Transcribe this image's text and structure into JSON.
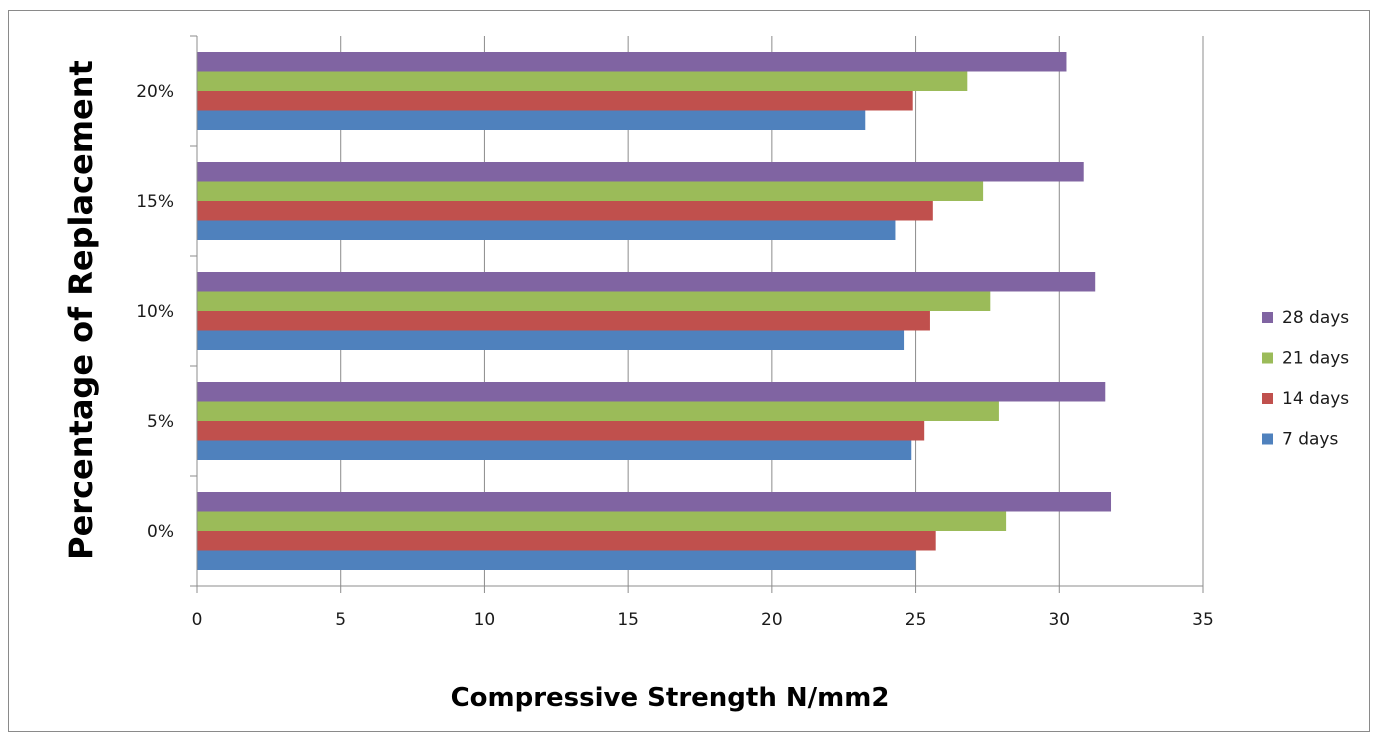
{
  "chart_data": {
    "type": "bar",
    "orientation": "horizontal",
    "categories": [
      "0%",
      "5%",
      "10%",
      "15%",
      "20%"
    ],
    "series": [
      {
        "name": "7 days",
        "color": "#4F81BD",
        "values": [
          25.0,
          24.85,
          24.6,
          24.3,
          23.25
        ]
      },
      {
        "name": "14 days",
        "color": "#C0504D",
        "values": [
          25.7,
          25.3,
          25.5,
          25.6,
          24.9
        ]
      },
      {
        "name": "21 days",
        "color": "#9BBB59",
        "values": [
          28.15,
          27.9,
          27.6,
          27.35,
          26.8
        ]
      },
      {
        "name": "28 days",
        "color": "#8064A2",
        "values": [
          31.8,
          31.6,
          31.25,
          30.85,
          30.25
        ]
      }
    ],
    "xlim": [
      0,
      35
    ],
    "xticks": [
      "0",
      "5",
      "10",
      "15",
      "20",
      "25",
      "30",
      "35"
    ],
    "xlabel": "Compressive Strength N/mm2",
    "ylabel": "Percentage of Replacement",
    "title": "",
    "grid": "vertical major gridlines",
    "legend_position": "right",
    "legend_order": [
      "28 days",
      "21 days",
      "14 days",
      "7 days"
    ]
  }
}
